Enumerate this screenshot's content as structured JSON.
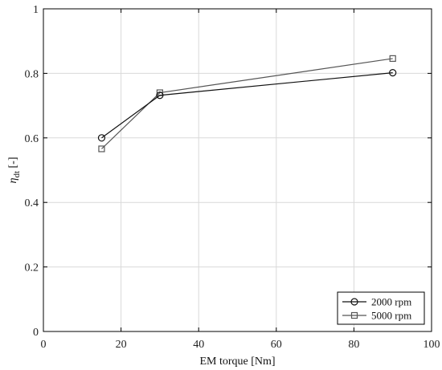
{
  "chart_data": {
    "type": "line",
    "title": "",
    "xlabel": "EM torque [Nm]",
    "ylabel_symbol": "η",
    "ylabel_subscript": "dt",
    "ylabel_suffix": " [-]",
    "xlim": [
      0,
      100
    ],
    "ylim": [
      0,
      1
    ],
    "x_ticks": [
      0,
      20,
      40,
      60,
      80,
      100
    ],
    "x_tick_labels": [
      "0",
      "20",
      "40",
      "60",
      "80",
      "100"
    ],
    "y_ticks": [
      0,
      0.2,
      0.4,
      0.6,
      0.8,
      1
    ],
    "y_tick_labels": [
      "0",
      "0.2",
      "0.4",
      "0.6",
      "0.8",
      "1"
    ],
    "grid": true,
    "legend_position": "bottom-right",
    "series": [
      {
        "name": "2000 rpm",
        "marker": "circle",
        "color": "#111111",
        "x": [
          15,
          30,
          90
        ],
        "y": [
          0.6,
          0.732,
          0.802
        ]
      },
      {
        "name": "5000 rpm",
        "marker": "square",
        "color": "#555555",
        "x": [
          15,
          30,
          90
        ],
        "y": [
          0.566,
          0.74,
          0.846
        ]
      }
    ]
  }
}
